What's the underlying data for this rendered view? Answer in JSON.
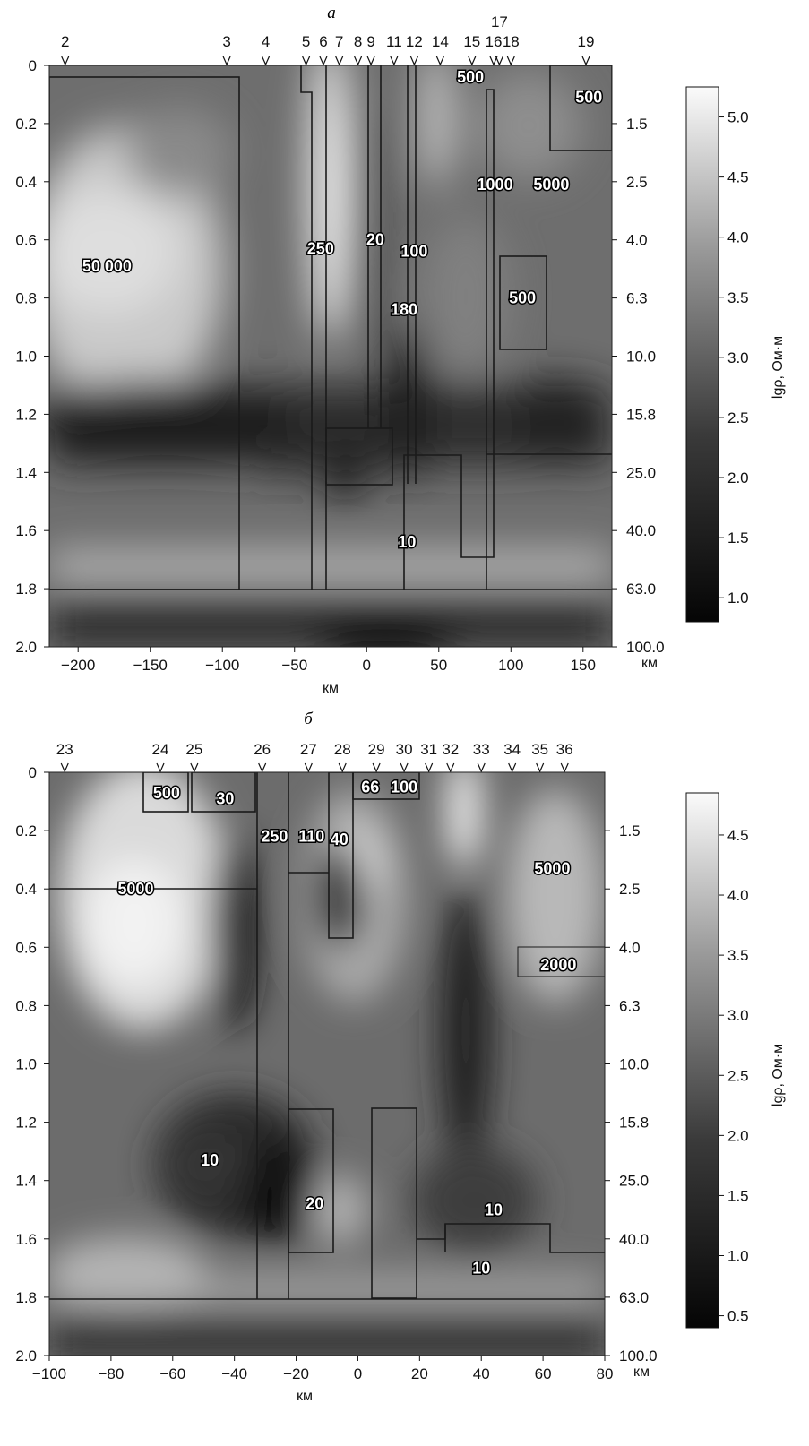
{
  "chart_data": [
    {
      "type": "heatmap",
      "title": "а",
      "xlabel": "км",
      "ylabel": "",
      "xlim": [
        -220,
        170
      ],
      "ylim": [
        0,
        2.0
      ],
      "x_ticks": [
        "−200",
        "−150",
        "−100",
        "−50",
        "0",
        "50",
        "100",
        "150"
      ],
      "x_tick_values": [
        -200,
        -150,
        -100,
        -50,
        0,
        50,
        100,
        150
      ],
      "y_ticks": [
        "0",
        "0.2",
        "0.4",
        "0.6",
        "0.8",
        "1.0",
        "1.2",
        "1.4",
        "1.6",
        "1.8",
        "2.0"
      ],
      "right_ticks": [
        "1.5",
        "2.5",
        "4.0",
        "6.3",
        "10.0",
        "15.8",
        "25.0",
        "40.0",
        "63.0",
        "100.0"
      ],
      "right_unit": "км",
      "stations": [
        "2",
        "3",
        "4",
        "5",
        "6",
        "7",
        "8",
        "9",
        "11",
        "12",
        "14",
        "15",
        "16",
        "17",
        "18",
        "19"
      ],
      "station_x": [
        -209,
        -97,
        -70,
        -42,
        -30,
        -19,
        -6,
        3,
        19,
        33,
        51,
        73,
        88,
        92,
        100,
        152
      ],
      "colorbar": {
        "label": "lgρ, Ом·м",
        "ticks": [
          "5.0",
          "4.5",
          "4.0",
          "3.5",
          "3.0",
          "2.5",
          "2.0",
          "1.5",
          "1.0"
        ],
        "range": [
          0.8,
          5.25
        ]
      },
      "labels": [
        {
          "text": "50 000",
          "x": -180,
          "y": 0.69
        },
        {
          "text": "250",
          "x": -32,
          "y": 0.63
        },
        {
          "text": "20",
          "x": 6,
          "y": 0.6
        },
        {
          "text": "100",
          "x": 33,
          "y": 0.64
        },
        {
          "text": "180",
          "x": 26,
          "y": 0.84
        },
        {
          "text": "500",
          "x": 72,
          "y": 0.04
        },
        {
          "text": "500",
          "x": 154,
          "y": 0.11
        },
        {
          "text": "1000",
          "x": 89,
          "y": 0.41
        },
        {
          "text": "5000",
          "x": 128,
          "y": 0.41
        },
        {
          "text": "500",
          "x": 108,
          "y": 0.8
        },
        {
          "text": "10",
          "x": 28,
          "y": 1.64
        }
      ]
    },
    {
      "type": "heatmap",
      "title": "б",
      "xlabel": "км",
      "ylabel": "",
      "xlim": [
        -100,
        80
      ],
      "ylim": [
        0,
        2.0
      ],
      "x_ticks": [
        "−100",
        "−80",
        "−60",
        "−40",
        "−20",
        "0",
        "20",
        "40",
        "60",
        "80"
      ],
      "x_tick_values": [
        -100,
        -80,
        -60,
        -40,
        -20,
        0,
        20,
        40,
        60,
        80
      ],
      "y_ticks": [
        "0",
        "0.2",
        "0.4",
        "0.6",
        "0.8",
        "1.0",
        "1.2",
        "1.4",
        "1.6",
        "1.8",
        "2.0"
      ],
      "right_ticks": [
        "1.5",
        "2.5",
        "4.0",
        "6.3",
        "10.0",
        "15.8",
        "25.0",
        "40.0",
        "63.0",
        "100.0"
      ],
      "right_unit": "км",
      "stations": [
        "23",
        "24",
        "25",
        "26",
        "27",
        "28",
        "29",
        "30",
        "31",
        "32",
        "33",
        "34",
        "35",
        "36"
      ],
      "station_x": [
        -95,
        -64,
        -53,
        -31,
        -16,
        -5,
        6,
        15,
        23,
        30,
        40,
        50,
        59,
        67
      ],
      "colorbar": {
        "label": "lgρ, Ом·м",
        "ticks": [
          "4.5",
          "4.0",
          "3.5",
          "3.0",
          "2.5",
          "2.0",
          "1.5",
          "1.0",
          "0.5"
        ],
        "range": [
          0.4,
          4.85
        ]
      },
      "labels": [
        {
          "text": "500",
          "x": -62,
          "y": 0.07
        },
        {
          "text": "30",
          "x": -43,
          "y": 0.09
        },
        {
          "text": "250",
          "x": -27,
          "y": 0.22
        },
        {
          "text": "110",
          "x": -15,
          "y": 0.22
        },
        {
          "text": "40",
          "x": -6,
          "y": 0.23
        },
        {
          "text": "66",
          "x": 4,
          "y": 0.05
        },
        {
          "text": "100",
          "x": 15,
          "y": 0.05
        },
        {
          "text": "5000",
          "x": -72,
          "y": 0.4
        },
        {
          "text": "5000",
          "x": 63,
          "y": 0.33
        },
        {
          "text": "2000",
          "x": 65,
          "y": 0.66
        },
        {
          "text": "10",
          "x": -48,
          "y": 1.33
        },
        {
          "text": "20",
          "x": -14,
          "y": 1.48
        },
        {
          "text": "10",
          "x": 44,
          "y": 1.5
        },
        {
          "text": "10",
          "x": 40,
          "y": 1.7
        }
      ]
    }
  ]
}
